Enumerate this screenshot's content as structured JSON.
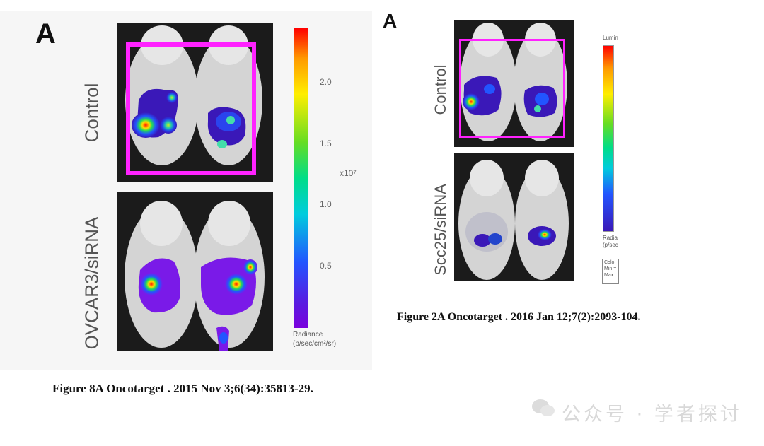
{
  "left_figure": {
    "panel_letter": "A",
    "row_labels": [
      "Control",
      "OVCAR3/siRNA"
    ],
    "colorbar": {
      "ticks": [
        "2.0",
        "1.5",
        "1.0",
        "0.5"
      ],
      "multiplier": "x10⁷",
      "unit_label": "Radiance",
      "unit": "(p/sec/cm²/sr)"
    },
    "caption": "Figure 8A Oncotarget . 2015 Nov 3;6(34):35813-29."
  },
  "right_figure": {
    "panel_letter": "A",
    "row_labels": [
      "Control",
      "Scc25/siRNA"
    ],
    "colorbar": {
      "top_label": "Lumin",
      "unit_label": "Radia",
      "unit": "(p/sec",
      "legend_lines": [
        "Colo",
        "Min =",
        "Max"
      ]
    },
    "caption": "Figure 2A Oncotarget . 2016 Jan 12;7(2):2093-104."
  },
  "watermark": {
    "text": "公众号 · 学者探讨",
    "icon": "wechat-icon"
  },
  "colors": {
    "highlight": "#ff22ff"
  }
}
